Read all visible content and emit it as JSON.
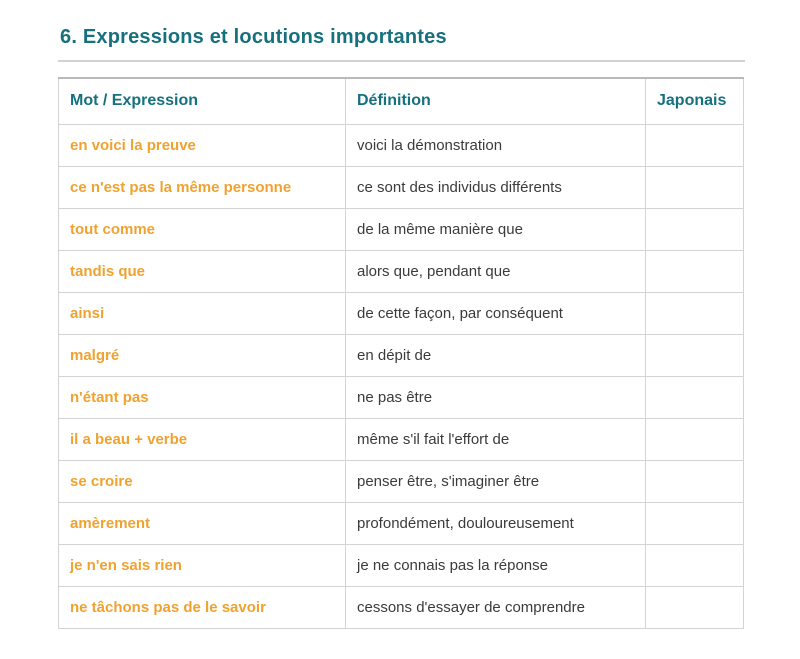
{
  "section": {
    "title": "6. Expressions et locutions importantes"
  },
  "table": {
    "headers": [
      "Mot / Expression",
      "Définition",
      "Japonais"
    ],
    "rows": [
      {
        "expression": "en voici la preuve",
        "definition": "voici la démonstration",
        "japonais": ""
      },
      {
        "expression": "ce n'est pas la même personne",
        "definition": "ce sont des individus différents",
        "japonais": ""
      },
      {
        "expression": "tout comme",
        "definition": "de la même manière que",
        "japonais": ""
      },
      {
        "expression": "tandis que",
        "definition": "alors que, pendant que",
        "japonais": ""
      },
      {
        "expression": "ainsi",
        "definition": "de cette façon, par conséquent",
        "japonais": ""
      },
      {
        "expression": "malgré",
        "definition": "en dépit de",
        "japonais": ""
      },
      {
        "expression": "n'étant pas",
        "definition": "ne pas être",
        "japonais": ""
      },
      {
        "expression": "il a beau + verbe",
        "definition": "même s'il fait l'effort de",
        "japonais": ""
      },
      {
        "expression": "se croire",
        "definition": "penser être, s'imaginer être",
        "japonais": ""
      },
      {
        "expression": "amèrement",
        "definition": "profondément, douloureusement",
        "japonais": ""
      },
      {
        "expression": "je n'en sais rien",
        "definition": "je ne connais pas la réponse",
        "japonais": ""
      },
      {
        "expression": "ne tâchons pas de le savoir",
        "definition": "cessons d'essayer de comprendre",
        "japonais": ""
      }
    ]
  },
  "colors": {
    "heading_teal": "#16707e",
    "expression_orange": "#efa22f",
    "definition_text": "#3b3b3b",
    "border": "#d3d3d3",
    "table_top_border": "#b9b9b9",
    "divider": "#d2d2d2"
  }
}
